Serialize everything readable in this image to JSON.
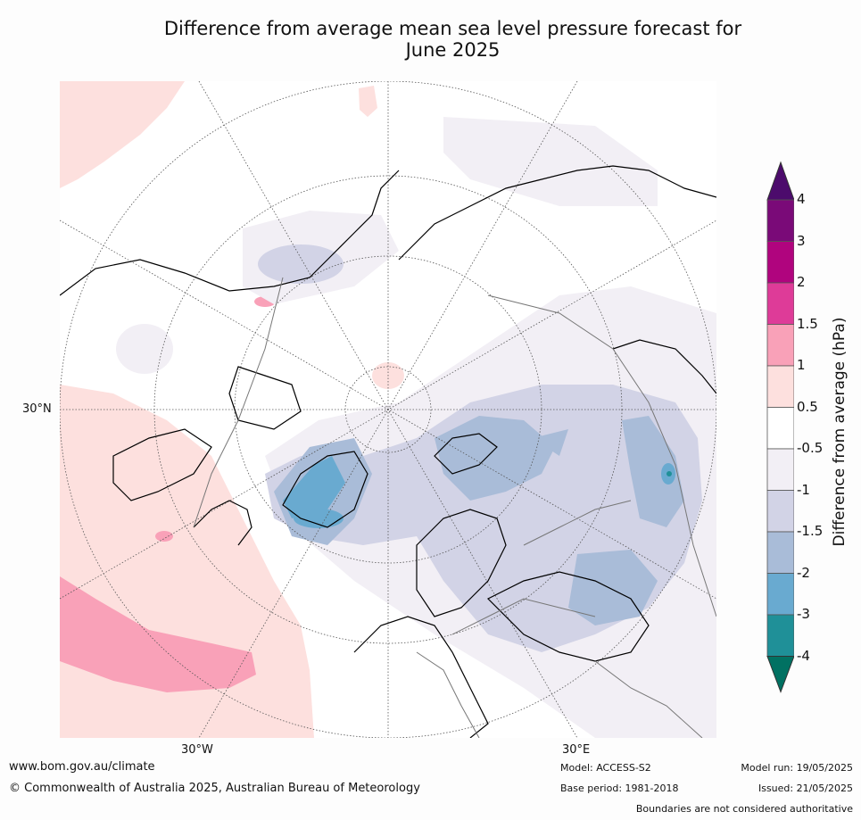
{
  "title": {
    "line1": "Difference from average mean sea level pressure forecast for",
    "line2": "June 2025"
  },
  "map_labels": {
    "lat_30n": "30°N",
    "lon_30w": "30°W",
    "lon_30e": "30°E"
  },
  "colorbar": {
    "title": "Difference from average (hPa)",
    "ticks": [
      "4",
      "3",
      "2",
      "1.5",
      "1",
      "0.5",
      "-0.5",
      "-1",
      "-1.5",
      "-2",
      "-3",
      "-4"
    ],
    "colors": [
      "#7a0a78",
      "#b0047e",
      "#de3b98",
      "#f9a1b8",
      "#fde0de",
      "#ffffff",
      "#f2eff5",
      "#d2d3e6",
      "#a9bcd8",
      "#69aad0",
      "#1f9098"
    ],
    "over_color": "#4c0b6c",
    "under_color": "#017162"
  },
  "footer": {
    "website": "www.bom.gov.au/climate",
    "copyright": "© Commonwealth of Australia 2025, Australian Bureau of Meteorology",
    "model": "Model: ACCESS-S2",
    "base_period": "Base period: 1981-2018",
    "model_run": "Model run: 19/05/2025",
    "issued": "Issued: 21/05/2025",
    "disclaimer": "Boundaries are not considered authoritative"
  }
}
